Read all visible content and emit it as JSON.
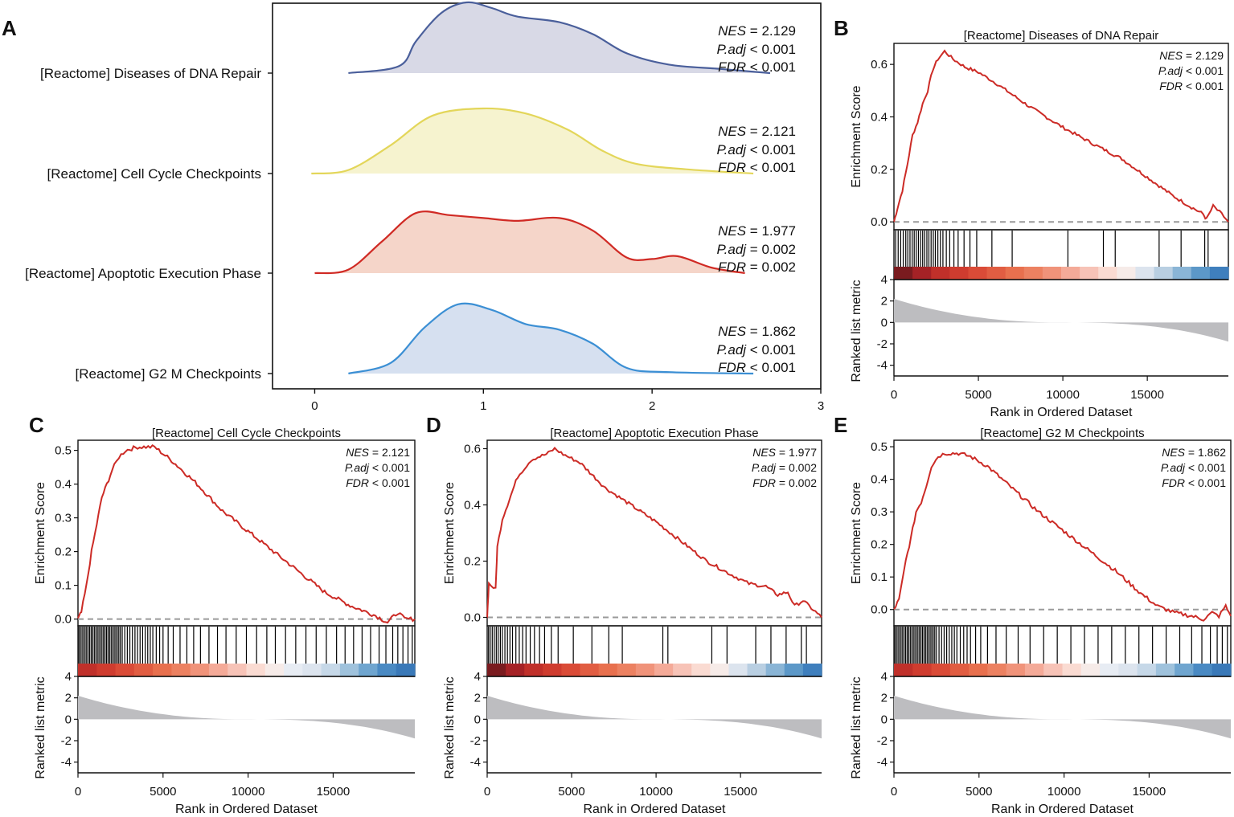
{
  "chart_data": [
    {
      "panel": "A",
      "type": "area",
      "subtype": "ridgeline",
      "xlim": [
        -0.25,
        3.0
      ],
      "xticks": [
        0,
        1,
        2,
        3
      ],
      "ridges": [
        {
          "label": "[Reactome] Diseases of DNA Repair",
          "fill": "#d8d9e6",
          "stroke": "#4a5f9b",
          "nes": "2.129",
          "padj": "< 0.001",
          "fdr": "< 0.001",
          "points": [
            [
              0.2,
              0
            ],
            [
              0.5,
              0.1
            ],
            [
              0.6,
              0.45
            ],
            [
              0.75,
              0.85
            ],
            [
              0.9,
              1.0
            ],
            [
              1.05,
              0.92
            ],
            [
              1.2,
              0.8
            ],
            [
              1.45,
              0.72
            ],
            [
              1.65,
              0.55
            ],
            [
              1.85,
              0.28
            ],
            [
              2.1,
              0.12
            ],
            [
              2.4,
              0.06
            ],
            [
              2.7,
              0.0
            ]
          ]
        },
        {
          "label": "[Reactome] Cell Cycle Checkpoints",
          "fill": "#f6f3cf",
          "stroke": "#e3d65a",
          "nes": "2.121",
          "padj": "< 0.001",
          "fdr": "< 0.001",
          "points": [
            [
              -0.02,
              0
            ],
            [
              0.2,
              0.05
            ],
            [
              0.45,
              0.4
            ],
            [
              0.7,
              0.82
            ],
            [
              1.0,
              0.92
            ],
            [
              1.25,
              0.85
            ],
            [
              1.5,
              0.62
            ],
            [
              1.7,
              0.33
            ],
            [
              1.9,
              0.14
            ],
            [
              2.2,
              0.06
            ],
            [
              2.6,
              0.0
            ]
          ]
        },
        {
          "label": "[Reactome] Apoptotic Execution Phase",
          "fill": "#f5d5c9",
          "stroke": "#d02a24",
          "nes": "1.977",
          "padj": "= 0.002",
          "fdr": "= 0.002",
          "points": [
            [
              0.0,
              0
            ],
            [
              0.2,
              0.05
            ],
            [
              0.4,
              0.45
            ],
            [
              0.6,
              0.85
            ],
            [
              0.8,
              0.82
            ],
            [
              1.0,
              0.78
            ],
            [
              1.2,
              0.74
            ],
            [
              1.45,
              0.78
            ],
            [
              1.65,
              0.6
            ],
            [
              1.85,
              0.22
            ],
            [
              2.0,
              0.2
            ],
            [
              2.15,
              0.24
            ],
            [
              2.35,
              0.08
            ],
            [
              2.55,
              0.0
            ]
          ]
        },
        {
          "label": "[Reactome] G2 M Checkpoints",
          "fill": "#d6e0f0",
          "stroke": "#3b8fd4",
          "nes": "1.862",
          "padj": "< 0.001",
          "fdr": "< 0.001",
          "points": [
            [
              0.2,
              0
            ],
            [
              0.45,
              0.15
            ],
            [
              0.65,
              0.65
            ],
            [
              0.85,
              0.98
            ],
            [
              1.05,
              0.9
            ],
            [
              1.25,
              0.7
            ],
            [
              1.45,
              0.62
            ],
            [
              1.65,
              0.42
            ],
            [
              1.85,
              0.08
            ],
            [
              2.1,
              0.02
            ],
            [
              2.6,
              0.0
            ]
          ]
        }
      ]
    },
    {
      "panel": "B",
      "type": "line",
      "title": "[Reactome] Diseases of DNA Repair",
      "nes": "2.129",
      "padj": "< 0.001",
      "fdr": "< 0.001",
      "xlim": [
        0,
        19800
      ],
      "ylim": [
        -0.03,
        0.68
      ],
      "yticks": [
        0.0,
        0.2,
        0.4,
        0.6
      ],
      "es_curve": [
        [
          0,
          0.0
        ],
        [
          200,
          0.05
        ],
        [
          500,
          0.12
        ],
        [
          800,
          0.22
        ],
        [
          1100,
          0.33
        ],
        [
          1400,
          0.38
        ],
        [
          1700,
          0.45
        ],
        [
          2000,
          0.5
        ],
        [
          2300,
          0.58
        ],
        [
          2600,
          0.62
        ],
        [
          3000,
          0.65
        ],
        [
          3500,
          0.62
        ],
        [
          4200,
          0.59
        ],
        [
          5000,
          0.57
        ],
        [
          6000,
          0.53
        ],
        [
          8000,
          0.44
        ],
        [
          10000,
          0.36
        ],
        [
          12000,
          0.29
        ],
        [
          13500,
          0.24
        ],
        [
          15000,
          0.17
        ],
        [
          16500,
          0.1
        ],
        [
          17500,
          0.06
        ],
        [
          18300,
          0.03
        ],
        [
          18500,
          0.01
        ],
        [
          18900,
          0.06
        ],
        [
          19400,
          0.03
        ],
        [
          19800,
          0.0
        ]
      ],
      "hit_ranks": [
        100,
        250,
        400,
        550,
        700,
        820,
        950,
        1080,
        1200,
        1320,
        1450,
        1580,
        1700,
        1820,
        1950,
        2070,
        2200,
        2330,
        2450,
        2600,
        2750,
        2900,
        3100,
        3300,
        3550,
        3800,
        4150,
        4500,
        4900,
        5800,
        7000,
        10300,
        12400,
        13100,
        15700,
        17000,
        18400,
        18600
      ],
      "heatmap_colors": [
        "#7a1b1f",
        "#a52226",
        "#c0302a",
        "#cf3c2f",
        "#da4b37",
        "#e15d42",
        "#e8704e",
        "#ec8161",
        "#f0937a",
        "#f4aa98",
        "#f7c3b7",
        "#fadbd2",
        "#f6ebe8",
        "#dce4ee",
        "#b9cfe2",
        "#8ab5d6",
        "#5c98c8",
        "#3f7fbd"
      ],
      "ranked_metric": {
        "ylim": [
          -5,
          4
        ],
        "yticks": [
          4,
          2,
          0,
          -2,
          -4
        ],
        "start": 2.2,
        "end": -1.8
      },
      "xticks": [
        0,
        5000,
        10000,
        15000
      ],
      "xlabel": "Rank in Ordered Dataset",
      "ylabel_top": "Enrichment Score",
      "ylabel_bottom": "Ranked list metric"
    },
    {
      "panel": "C",
      "type": "line",
      "title": "[Reactome] Cell Cycle Checkpoints",
      "nes": "2.121",
      "padj": "< 0.001",
      "fdr": "< 0.001",
      "xlim": [
        0,
        19800
      ],
      "ylim": [
        -0.02,
        0.53
      ],
      "yticks": [
        0.0,
        0.1,
        0.2,
        0.3,
        0.4,
        0.5
      ],
      "es_curve": [
        [
          0,
          0.0
        ],
        [
          200,
          0.02
        ],
        [
          500,
          0.1
        ],
        [
          800,
          0.2
        ],
        [
          1100,
          0.28
        ],
        [
          1400,
          0.36
        ],
        [
          1700,
          0.4
        ],
        [
          2000,
          0.44
        ],
        [
          2400,
          0.48
        ],
        [
          2800,
          0.5
        ],
        [
          3500,
          0.51
        ],
        [
          4500,
          0.51
        ],
        [
          5500,
          0.47
        ],
        [
          7000,
          0.4
        ],
        [
          8500,
          0.32
        ],
        [
          10000,
          0.26
        ],
        [
          11500,
          0.2
        ],
        [
          13000,
          0.14
        ],
        [
          14500,
          0.08
        ],
        [
          16000,
          0.04
        ],
        [
          17500,
          0.01
        ],
        [
          18200,
          -0.01
        ],
        [
          18800,
          0.02
        ],
        [
          19200,
          0.0
        ],
        [
          19800,
          0.0
        ]
      ],
      "hit_ranks": [
        60,
        150,
        240,
        330,
        420,
        510,
        600,
        690,
        780,
        870,
        960,
        1050,
        1140,
        1230,
        1320,
        1410,
        1500,
        1590,
        1680,
        1770,
        1860,
        1950,
        2040,
        2130,
        2220,
        2310,
        2400,
        2490,
        2600,
        2750,
        2900,
        3050,
        3200,
        3350,
        3500,
        3650,
        3800,
        3950,
        4100,
        4250,
        4400,
        4600,
        4800,
        5000,
        5300,
        5600,
        6000,
        6400,
        6800,
        7200,
        7700,
        8200,
        8700,
        9300,
        9900,
        10500,
        11100,
        11600,
        12200,
        12800,
        13400,
        14000,
        14600,
        15200,
        15700,
        16200,
        16700,
        17200,
        17700,
        18100,
        18500,
        18800,
        19100,
        19400,
        19650
      ],
      "heatmap_colors": [
        "#c0302a",
        "#cf3c2f",
        "#da4b37",
        "#e15d42",
        "#e8704e",
        "#ec8161",
        "#f0937a",
        "#f4aa98",
        "#f7c3b7",
        "#fadbd2",
        "#f6ebe8",
        "#e7ecf3",
        "#dce4ee",
        "#c6d8e8",
        "#9fc2dc",
        "#6fa5cf",
        "#4a8ac3",
        "#3a79b8"
      ],
      "ranked_metric": {
        "ylim": [
          -5,
          4
        ],
        "yticks": [
          4,
          2,
          0,
          -2,
          -4
        ],
        "start": 2.2,
        "end": -1.8
      },
      "xticks": [
        0,
        5000,
        10000,
        15000
      ],
      "xlabel": "Rank in Ordered Dataset",
      "ylabel_top": "Enrichment Score",
      "ylabel_bottom": "Ranked list metric"
    },
    {
      "panel": "D",
      "type": "line",
      "title": "[Reactome] Apoptotic Execution Phase",
      "nes": "1.977",
      "padj": "= 0.002",
      "fdr": "= 0.002",
      "xlim": [
        0,
        19800
      ],
      "ylim": [
        -0.03,
        0.63
      ],
      "yticks": [
        0.0,
        0.2,
        0.4,
        0.6
      ],
      "es_curve": [
        [
          0,
          0.0
        ],
        [
          100,
          0.12
        ],
        [
          500,
          0.1
        ],
        [
          600,
          0.25
        ],
        [
          900,
          0.35
        ],
        [
          1200,
          0.4
        ],
        [
          1500,
          0.45
        ],
        [
          1800,
          0.5
        ],
        [
          2200,
          0.53
        ],
        [
          2600,
          0.56
        ],
        [
          3000,
          0.57
        ],
        [
          3500,
          0.58
        ],
        [
          4000,
          0.6
        ],
        [
          4500,
          0.58
        ],
        [
          5500,
          0.55
        ],
        [
          7000,
          0.46
        ],
        [
          8500,
          0.4
        ],
        [
          10000,
          0.34
        ],
        [
          11500,
          0.27
        ],
        [
          13000,
          0.2
        ],
        [
          14500,
          0.15
        ],
        [
          15500,
          0.12
        ],
        [
          16500,
          0.11
        ],
        [
          17200,
          0.08
        ],
        [
          17800,
          0.09
        ],
        [
          18200,
          0.04
        ],
        [
          18700,
          0.06
        ],
        [
          19800,
          0.0
        ]
      ],
      "hit_ranks": [
        80,
        180,
        300,
        420,
        540,
        650,
        780,
        900,
        1050,
        1200,
        1350,
        1500,
        1700,
        1900,
        2100,
        2300,
        2550,
        2800,
        3100,
        3400,
        3800,
        4200,
        5100,
        6200,
        7200,
        8000,
        10400,
        10700,
        13300,
        14200,
        15900,
        16800,
        17700,
        18600,
        18900
      ],
      "heatmap_colors": [
        "#7a1b1f",
        "#a52226",
        "#c0302a",
        "#cf3c2f",
        "#da4b37",
        "#e15d42",
        "#e8704e",
        "#ec8161",
        "#f0937a",
        "#f4aa98",
        "#f7c3b7",
        "#fadbd2",
        "#f6ebe8",
        "#dce4ee",
        "#b9cfe2",
        "#8ab5d6",
        "#5c98c8",
        "#3f7fbd"
      ],
      "ranked_metric": {
        "ylim": [
          -5,
          4
        ],
        "yticks": [
          4,
          2,
          0,
          -2,
          -4
        ],
        "start": 2.2,
        "end": -1.8
      },
      "xticks": [
        0,
        5000,
        10000,
        15000
      ],
      "xlabel": "Rank in Ordered Dataset",
      "ylabel_top": "Enrichment Score",
      "ylabel_bottom": "Ranked list metric"
    },
    {
      "panel": "E",
      "type": "line",
      "title": "[Reactome] G2 M Checkpoints",
      "nes": "1.862",
      "padj": "< 0.001",
      "fdr": "< 0.001",
      "xlim": [
        0,
        19800
      ],
      "ylim": [
        -0.05,
        0.52
      ],
      "yticks": [
        0.0,
        0.1,
        0.2,
        0.3,
        0.4,
        0.5
      ],
      "es_curve": [
        [
          0,
          0.0
        ],
        [
          300,
          0.03
        ],
        [
          700,
          0.15
        ],
        [
          1000,
          0.22
        ],
        [
          1300,
          0.3
        ],
        [
          1600,
          0.33
        ],
        [
          1900,
          0.38
        ],
        [
          2200,
          0.44
        ],
        [
          2600,
          0.47
        ],
        [
          3000,
          0.48
        ],
        [
          3800,
          0.48
        ],
        [
          4500,
          0.47
        ],
        [
          5500,
          0.44
        ],
        [
          7000,
          0.37
        ],
        [
          8500,
          0.3
        ],
        [
          10000,
          0.24
        ],
        [
          11500,
          0.18
        ],
        [
          13000,
          0.12
        ],
        [
          14500,
          0.05
        ],
        [
          15500,
          0.01
        ],
        [
          16500,
          -0.01
        ],
        [
          17500,
          -0.02
        ],
        [
          18200,
          -0.03
        ],
        [
          18700,
          -0.01
        ],
        [
          19100,
          -0.02
        ],
        [
          19500,
          0.01
        ],
        [
          19800,
          -0.02
        ]
      ],
      "hit_ranks": [
        60,
        150,
        240,
        330,
        420,
        510,
        600,
        690,
        780,
        870,
        960,
        1050,
        1140,
        1230,
        1320,
        1410,
        1500,
        1590,
        1680,
        1770,
        1860,
        1950,
        2040,
        2130,
        2220,
        2310,
        2400,
        2500,
        2650,
        2800,
        2950,
        3100,
        3250,
        3400,
        3550,
        3700,
        3900,
        4100,
        4300,
        4500,
        4800,
        5100,
        5500,
        6000,
        6600,
        7300,
        8000,
        8800,
        9600,
        10400,
        11200,
        12000,
        12800,
        13600,
        14400,
        15200,
        16000,
        16800,
        17500,
        18100,
        18600,
        19000,
        19300,
        19600
      ],
      "heatmap_colors": [
        "#c0302a",
        "#cf3c2f",
        "#da4b37",
        "#e15d42",
        "#e8704e",
        "#ec8161",
        "#f0937a",
        "#f4aa98",
        "#f7c3b7",
        "#fadbd2",
        "#f6ebe8",
        "#e7ecf3",
        "#dce4ee",
        "#c6d8e8",
        "#9fc2dc",
        "#6fa5cf",
        "#4a8ac3",
        "#3a79b8"
      ],
      "ranked_metric": {
        "ylim": [
          -5,
          4
        ],
        "yticks": [
          4,
          2,
          0,
          -2,
          -4
        ],
        "start": 2.2,
        "end": -1.8
      },
      "xticks": [
        0,
        5000,
        10000,
        15000
      ],
      "xlabel": "Rank in Ordered Dataset",
      "ylabel_top": "Enrichment Score",
      "ylabel_bottom": "Ranked list metric"
    }
  ],
  "labels": {
    "nes": "NES",
    "padj": "P.adj",
    "fdr": "FDR"
  },
  "colors": {
    "es_line": "#cc2b26",
    "zero_line": "#9a9a9a",
    "metric_fill": "#bdbdc0",
    "hit_line": "#000000"
  }
}
